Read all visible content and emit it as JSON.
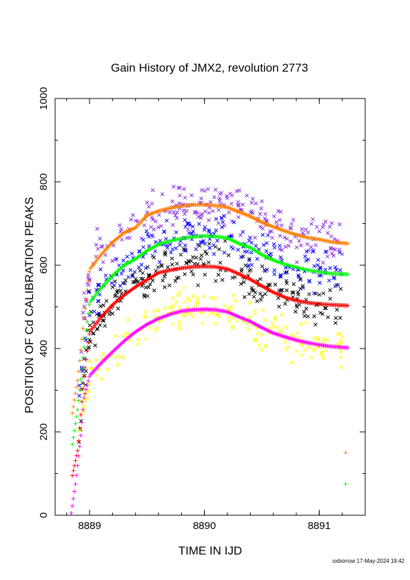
{
  "chart_data": {
    "type": "scatter",
    "title": "Gain History of JMX2, revolution 2773",
    "xlabel": "TIME IN IJD",
    "ylabel": "POSITION OF Cd CALIBRATION PEAKS",
    "footer": "oxborrow 17-May-2024 19:42",
    "xlim": [
      8888.7,
      8891.4
    ],
    "ylim": [
      0,
      1000
    ],
    "x_ticks": [
      "8889",
      "8890",
      "8891"
    ],
    "y_ticks": [
      "0",
      "200",
      "400",
      "600",
      "800",
      "1000"
    ],
    "grid": false,
    "legend": "none",
    "series": [
      {
        "marker": "plus",
        "color": "#ff7f00",
        "kind": "curve",
        "x": [
          8888.85,
          8888.9,
          8888.95,
          8889.0,
          8889.1,
          8889.2,
          8889.3,
          8889.4,
          8889.5,
          8889.6,
          8889.7,
          8889.8,
          8889.9,
          8890.0,
          8890.1,
          8890.2,
          8890.3,
          8890.4,
          8890.5,
          8890.6,
          8890.7,
          8890.8,
          8890.9,
          8891.0,
          8891.1,
          8891.25
        ],
        "y": [
          245,
          330,
          470,
          590,
          625,
          655,
          678,
          690,
          720,
          730,
          737,
          742,
          745,
          745,
          743,
          739,
          728,
          717,
          703,
          692,
          682,
          673,
          666,
          662,
          656,
          652
        ]
      },
      {
        "marker": "plus",
        "color": "#00ff00",
        "kind": "curve",
        "x": [
          8888.85,
          8888.9,
          8888.95,
          8889.0,
          8889.1,
          8889.2,
          8889.3,
          8889.4,
          8889.5,
          8889.6,
          8889.7,
          8889.8,
          8889.9,
          8890.0,
          8890.1,
          8890.2,
          8890.3,
          8890.4,
          8890.5,
          8890.6,
          8890.7,
          8890.8,
          8890.9,
          8891.0,
          8891.1,
          8891.25
        ],
        "y": [
          170,
          260,
          400,
          510,
          545,
          575,
          600,
          615,
          635,
          650,
          658,
          664,
          668,
          670,
          669,
          665,
          652,
          642,
          625,
          612,
          602,
          595,
          588,
          584,
          580,
          578
        ]
      },
      {
        "marker": "plus",
        "color": "#ff0000",
        "kind": "curve",
        "x": [
          8888.85,
          8888.9,
          8888.95,
          8889.0,
          8889.1,
          8889.2,
          8889.3,
          8889.4,
          8889.5,
          8889.6,
          8889.7,
          8889.8,
          8889.9,
          8890.0,
          8890.1,
          8890.2,
          8890.3,
          8890.4,
          8890.5,
          8890.6,
          8890.7,
          8890.8,
          8890.9,
          8891.0,
          8891.1,
          8891.25
        ],
        "y": [
          95,
          160,
          330,
          440,
          475,
          505,
          528,
          548,
          565,
          582,
          588,
          593,
          596,
          597,
          596,
          591,
          579,
          566,
          550,
          535,
          523,
          515,
          510,
          507,
          505,
          503
        ]
      },
      {
        "marker": "plus",
        "color": "#ff00ff",
        "kind": "curve",
        "x": [
          8888.84,
          8888.88,
          8888.92,
          8888.95,
          8889.0,
          8889.1,
          8889.2,
          8889.3,
          8889.4,
          8889.5,
          8889.6,
          8889.7,
          8889.8,
          8889.9,
          8890.0,
          8890.1,
          8890.2,
          8890.3,
          8890.4,
          8890.5,
          8890.6,
          8890.7,
          8890.8,
          8890.9,
          8891.0,
          8891.1,
          8891.25
        ],
        "y": [
          5,
          80,
          180,
          280,
          335,
          365,
          392,
          418,
          440,
          458,
          472,
          482,
          490,
          493,
          494,
          493,
          488,
          476,
          465,
          450,
          437,
          428,
          420,
          414,
          409,
          405,
          402
        ]
      },
      {
        "marker": "cross",
        "color": "#8a2be2",
        "kind": "scatter",
        "center_series": 0,
        "x_range": [
          8888.9,
          8891.2
        ],
        "count": 230,
        "spread": 26,
        "seed": 11
      },
      {
        "marker": "cross",
        "color": "#0000ff",
        "kind": "scatter",
        "center_series": 1,
        "x_range": [
          8888.9,
          8891.2
        ],
        "count": 230,
        "spread": 24,
        "seed": 23
      },
      {
        "marker": "cross",
        "color": "#000000",
        "kind": "scatter",
        "center_series": 2,
        "x_range": [
          8888.9,
          8891.2
        ],
        "count": 230,
        "spread": 24,
        "seed": 37
      },
      {
        "marker": "cross",
        "color": "#ffff00",
        "kind": "scatter",
        "center_series": 3,
        "x_range": [
          8888.9,
          8891.2
        ],
        "count": 200,
        "spread": 22,
        "seed": 51
      }
    ],
    "outliers": [
      {
        "marker": "plus",
        "color": "#ff7f00",
        "x": 8891.23,
        "y": 150
      },
      {
        "marker": "plus",
        "color": "#00ff00",
        "x": 8891.23,
        "y": 75
      }
    ]
  }
}
